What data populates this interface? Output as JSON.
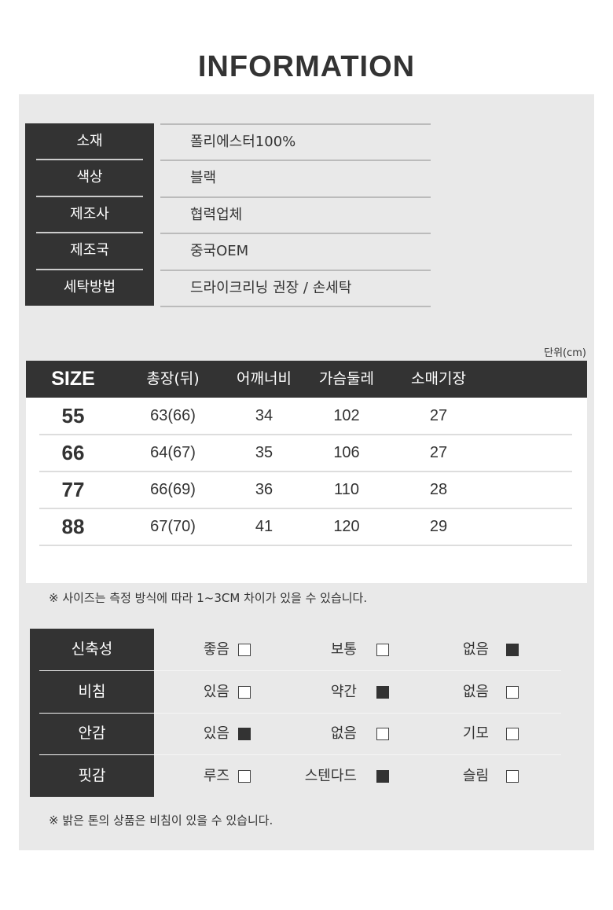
{
  "title": "INFORMATION",
  "info": [
    {
      "label": "소재",
      "value": "폴리에스터100%"
    },
    {
      "label": "색상",
      "value": "블랙"
    },
    {
      "label": "제조사",
      "value": "협력업체"
    },
    {
      "label": "제조국",
      "value": "중국OEM"
    },
    {
      "label": "세탁방법",
      "value": "드라이크리닝 권장 / 손세탁"
    }
  ],
  "size_table": {
    "unit": "단위(cm)",
    "headers": [
      "SIZE",
      "총장(뒤)",
      "어깨너비",
      "가슴둘레",
      "소매기장"
    ],
    "rows": [
      [
        "55",
        "63(66)",
        "34",
        "102",
        "27"
      ],
      [
        "66",
        "64(67)",
        "35",
        "106",
        "27"
      ],
      [
        "77",
        "66(69)",
        "36",
        "110",
        "28"
      ],
      [
        "88",
        "67(70)",
        "41",
        "120",
        "29"
      ]
    ],
    "note": "※ 사이즈는 측정 방식에 따라 1~3CM 차이가 있을 수 있습니다."
  },
  "features": {
    "rows": [
      {
        "label": "신축성",
        "options": [
          {
            "text": "좋음",
            "checked": false
          },
          {
            "text": "보통",
            "checked": false
          },
          {
            "text": "없음",
            "checked": true
          }
        ]
      },
      {
        "label": "비침",
        "options": [
          {
            "text": "있음",
            "checked": false
          },
          {
            "text": "약간",
            "checked": true
          },
          {
            "text": "없음",
            "checked": false
          }
        ]
      },
      {
        "label": "안감",
        "options": [
          {
            "text": "있음",
            "checked": true
          },
          {
            "text": "없음",
            "checked": false
          },
          {
            "text": "기모",
            "checked": false
          }
        ]
      },
      {
        "label": "핏감",
        "options": [
          {
            "text": "루즈",
            "checked": false
          },
          {
            "text": "스텐다드",
            "checked": true
          },
          {
            "text": "슬림",
            "checked": false
          }
        ]
      }
    ],
    "note": "※ 밝은 톤의 상품은 비침이 있을 수 있습니다."
  },
  "colors": {
    "dark": "#333333",
    "panel": "#e9e9e9"
  }
}
